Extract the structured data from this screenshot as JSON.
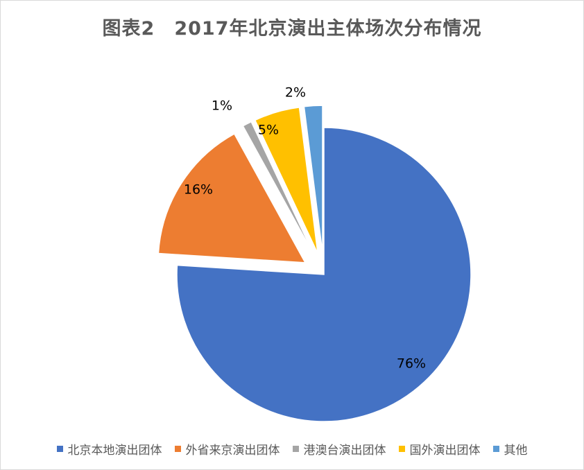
{
  "chart_data": {
    "type": "pie",
    "title": "图表2　2017年北京演出主体场次分布情况",
    "categories": [
      "北京本地演出团体",
      "外省来京演出团体",
      "港澳台演出团体",
      "国外演出团体",
      "其他"
    ],
    "values": [
      76,
      16,
      1,
      5,
      2
    ],
    "labels": [
      "76%",
      "16%",
      "1%",
      "5%",
      "2%"
    ],
    "colors": [
      "#4472C4",
      "#ED7D31",
      "#A5A5A5",
      "#FFC000",
      "#5B9BD5"
    ],
    "exploded": true,
    "legend_position": "bottom"
  }
}
